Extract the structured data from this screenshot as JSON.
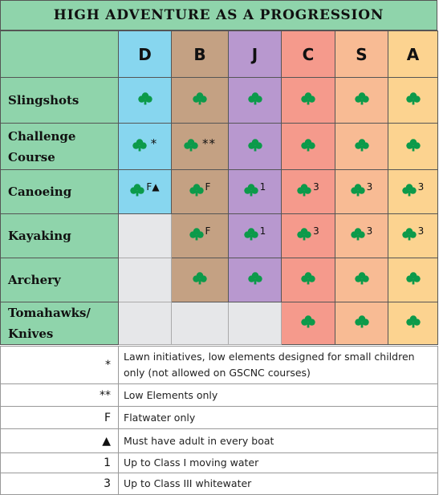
{
  "title": "HIGH ADVENTURE AS A PROGRESSION",
  "columns": [
    "D",
    "B",
    "J",
    "C",
    "S",
    "A"
  ],
  "colors": {
    "header_green": "#8fd4ab",
    "D": "#87d6ef",
    "B": "#c4a183",
    "J": "#b898cf",
    "C": "#f59a8c",
    "S": "#f8bb94",
    "A": "#fcd390",
    "not_available": "#e6e7e9",
    "trefoil": "#0c9a4a"
  },
  "rows": [
    {
      "label_lines": [
        "Slingshots"
      ],
      "cells": [
        "",
        "",
        "",
        "",
        "",
        ""
      ],
      "available": [
        true,
        true,
        true,
        true,
        true,
        true
      ]
    },
    {
      "label_lines": [
        "Challenge",
        "Course"
      ],
      "cells": [
        "*",
        "**",
        "",
        "",
        "",
        ""
      ],
      "available": [
        true,
        true,
        true,
        true,
        true,
        true
      ]
    },
    {
      "label_lines": [
        "Canoeing"
      ],
      "cells": [
        "F▲",
        "F",
        "1",
        "3",
        "3",
        "3"
      ],
      "available": [
        true,
        true,
        true,
        true,
        true,
        true
      ]
    },
    {
      "label_lines": [
        "Kayaking"
      ],
      "cells": [
        "",
        "F",
        "1",
        "3",
        "3",
        "3"
      ],
      "available": [
        false,
        true,
        true,
        true,
        true,
        true
      ]
    },
    {
      "label_lines": [
        "Archery"
      ],
      "cells": [
        "",
        "",
        "",
        "",
        "",
        ""
      ],
      "available": [
        false,
        true,
        true,
        true,
        true,
        true
      ]
    },
    {
      "label_lines": [
        "Tomahawks/",
        "Knives"
      ],
      "cells": [
        "",
        "",
        "",
        "",
        "",
        ""
      ],
      "available": [
        false,
        false,
        false,
        true,
        true,
        true
      ]
    }
  ],
  "legend": [
    {
      "symbol": "*",
      "text": "Lawn initiatives, low elements designed for small children only (not allowed on GSCNC courses)"
    },
    {
      "symbol": "**",
      "text": "Low Elements only"
    },
    {
      "symbol": "F",
      "text": "Flatwater only"
    },
    {
      "symbol": "▲",
      "text": "Must have adult in every boat"
    },
    {
      "symbol": "1",
      "text": "Up to Class I moving water"
    },
    {
      "symbol": "3",
      "text": "Up to Class III whitewater"
    }
  ],
  "icons": {
    "availability_mark": "trefoil-icon"
  }
}
